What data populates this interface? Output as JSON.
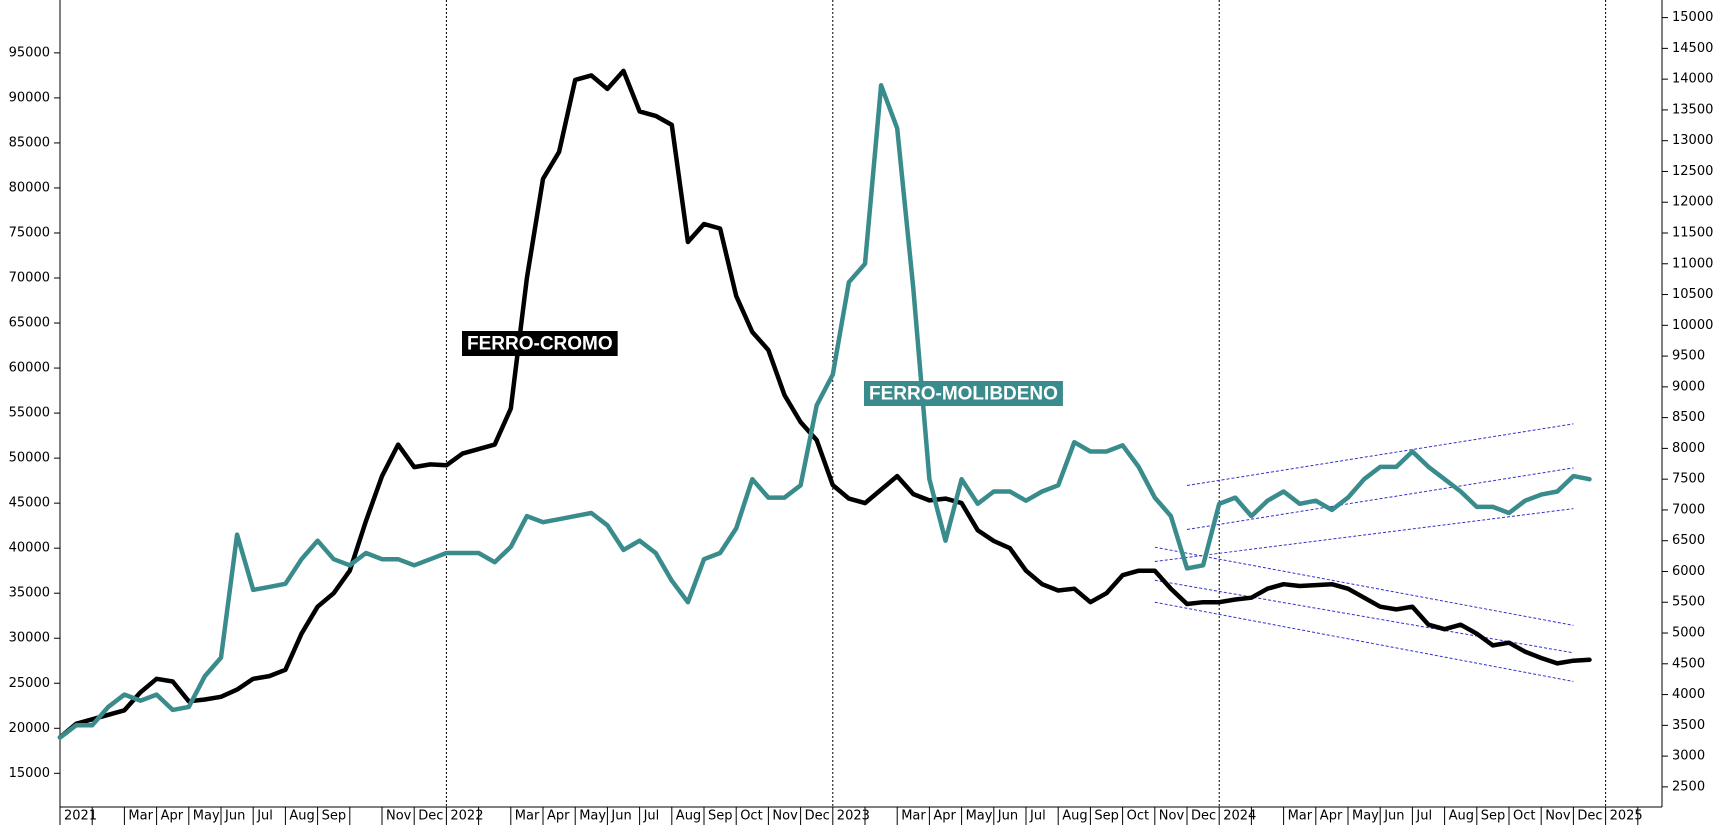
{
  "chart_data": {
    "type": "line",
    "categories": [
      "2021",
      null,
      null,
      null,
      "Mar",
      null,
      "Apr",
      null,
      "May",
      null,
      "Jun",
      null,
      "Jul",
      null,
      "Aug",
      null,
      "Sep",
      null,
      null,
      null,
      "Nov",
      null,
      "Dec",
      null,
      "2022",
      null,
      null,
      null,
      "Mar",
      null,
      "Apr",
      null,
      "May",
      null,
      "Jun",
      null,
      "Jul",
      null,
      "Aug",
      null,
      "Sep",
      null,
      "Oct",
      null,
      "Nov",
      null,
      "Dec",
      null,
      "2023",
      null,
      null,
      null,
      "Mar",
      null,
      "Apr",
      null,
      "May",
      null,
      "Jun",
      null,
      "Jul",
      null,
      "Aug",
      null,
      "Sep",
      null,
      "Oct",
      null,
      "Nov",
      null,
      "Dec",
      null,
      "2024",
      null,
      null,
      null,
      "Mar",
      null,
      "Apr",
      null,
      "May",
      null,
      "Jun",
      null,
      "Jul",
      null,
      "Aug",
      null,
      "Sep",
      null,
      "Oct",
      null,
      "Nov",
      null,
      "Dec",
      null,
      "2025",
      null,
      null,
      null
    ],
    "series": [
      {
        "name": "FERRO-CROMO",
        "color": "#000000",
        "values": [
          19000,
          20500,
          21000,
          21500,
          22000,
          24000,
          25500,
          25200,
          23000,
          23200,
          23500,
          24300,
          25500,
          25800,
          26500,
          30500,
          33500,
          35000,
          37500,
          43000,
          48000,
          51500,
          49000,
          49300,
          49200,
          50500,
          51000,
          51500,
          55500,
          70000,
          81000,
          84000,
          92000,
          92500,
          91000,
          93000,
          88500,
          88000,
          87000,
          74000,
          76000,
          75500,
          68000,
          64000,
          62000,
          57000,
          54000,
          52000,
          47000,
          45500,
          45000,
          46500,
          48000,
          46000,
          45300,
          45500,
          45000,
          42000,
          40800,
          40000,
          37500,
          36000,
          35300,
          35500,
          34000,
          35000,
          37000,
          37500,
          37500,
          35500,
          33800,
          34000,
          34000,
          34300,
          34500,
          35500,
          36000,
          35800,
          35900,
          36000,
          35500,
          34500,
          33500,
          33200,
          33500,
          31500,
          31000,
          31500,
          30500,
          29200,
          29500,
          28500,
          27800,
          27200,
          27500,
          27600,
          null,
          null,
          null,
          null
        ]
      },
      {
        "name": "FERRO-MOLIBDENO",
        "color": "#3a8c8c",
        "axis": "y2",
        "values": [
          3300,
          3500,
          3500,
          3800,
          4000,
          3900,
          4000,
          3750,
          3800,
          4300,
          4600,
          6600,
          5700,
          5750,
          5800,
          6200,
          6500,
          6200,
          6100,
          6300,
          6200,
          6200,
          6100,
          6200,
          6300,
          6300,
          6300,
          6150,
          6400,
          6900,
          6800,
          6850,
          6900,
          6950,
          6750,
          6350,
          6500,
          6300,
          5850,
          5500,
          6200,
          6300,
          6700,
          7500,
          7200,
          7200,
          7400,
          8700,
          9200,
          10700,
          11000,
          13900,
          13200,
          10600,
          7500,
          6500,
          7500,
          7100,
          7300,
          7300,
          7150,
          7300,
          7400,
          8100,
          7950,
          7950,
          8050,
          7700,
          7200,
          6900,
          6050,
          6100,
          7100,
          7200,
          6900,
          7150,
          7300,
          7100,
          7150,
          7000,
          7200,
          7500,
          7700,
          7700,
          7950,
          7700,
          7500,
          7300,
          7050,
          7050,
          6950,
          7150,
          7250,
          7300,
          7550,
          7500,
          null,
          null,
          null,
          null
        ]
      }
    ],
    "ylim": [
      11260,
      100870
    ],
    "yticks": [
      15000,
      20000,
      25000,
      30000,
      35000,
      40000,
      45000,
      50000,
      55000,
      60000,
      65000,
      70000,
      75000,
      80000,
      85000,
      90000,
      95000
    ],
    "y2lim": [
      2173,
      15286
    ],
    "y2ticks": [
      2500,
      3000,
      3500,
      4000,
      4500,
      5000,
      5500,
      6000,
      6500,
      7000,
      7500,
      8000,
      8500,
      9000,
      9500,
      10000,
      10500,
      11000,
      11500,
      12000,
      12500,
      13000,
      13500,
      14000,
      14500,
      15000
    ],
    "trend_lines": [
      {
        "axis": "y2",
        "color": "#3333cc",
        "values": [
          null,
          null,
          null,
          null,
          null,
          null,
          null,
          null,
          null,
          null,
          null,
          null,
          null,
          null,
          null,
          null,
          null,
          null,
          null,
          null,
          null,
          null,
          null,
          null,
          null,
          null,
          null,
          null,
          null,
          null,
          null,
          null,
          null,
          null,
          null,
          null,
          null,
          null,
          null,
          null,
          null,
          null,
          null,
          null,
          null,
          null,
          null,
          null,
          null,
          null,
          null,
          null,
          null,
          null,
          null,
          null,
          null,
          null,
          null,
          null,
          null,
          null,
          null,
          null,
          null,
          null,
          null,
          null,
          null,
          null,
          7397,
          null,
          null,
          null,
          null,
          null,
          null,
          null,
          null,
          null,
          null,
          null,
          null,
          null,
          null,
          null,
          null,
          null,
          null,
          null,
          null,
          null,
          null,
          null,
          8399,
          null,
          null,
          null,
          null,
          null
        ]
      },
      {
        "axis": "y2",
        "color": "#3333cc",
        "values": [
          null,
          null,
          null,
          null,
          null,
          null,
          null,
          null,
          null,
          null,
          null,
          null,
          null,
          null,
          null,
          null,
          null,
          null,
          null,
          null,
          null,
          null,
          null,
          null,
          null,
          null,
          null,
          null,
          null,
          null,
          null,
          null,
          null,
          null,
          null,
          null,
          null,
          null,
          null,
          null,
          null,
          null,
          null,
          null,
          null,
          null,
          null,
          null,
          null,
          null,
          null,
          null,
          null,
          null,
          null,
          null,
          null,
          null,
          null,
          null,
          null,
          null,
          null,
          null,
          null,
          null,
          null,
          null,
          null,
          null,
          6682,
          null,
          null,
          null,
          null,
          null,
          null,
          null,
          null,
          null,
          null,
          null,
          null,
          null,
          null,
          null,
          null,
          null,
          null,
          null,
          null,
          null,
          null,
          null,
          7683,
          null,
          null,
          null,
          null,
          null
        ]
      },
      {
        "axis": "y2",
        "color": "#3333cc",
        "values": [
          null,
          null,
          null,
          null,
          null,
          null,
          null,
          null,
          null,
          null,
          null,
          null,
          null,
          null,
          null,
          null,
          null,
          null,
          null,
          null,
          null,
          null,
          null,
          null,
          null,
          null,
          null,
          null,
          null,
          null,
          null,
          null,
          null,
          null,
          null,
          null,
          null,
          null,
          null,
          null,
          null,
          null,
          null,
          null,
          null,
          null,
          null,
          null,
          null,
          null,
          null,
          null,
          null,
          null,
          null,
          null,
          null,
          null,
          null,
          null,
          null,
          null,
          null,
          null,
          null,
          null,
          null,
          null,
          6163,
          null,
          null,
          null,
          null,
          null,
          null,
          null,
          null,
          null,
          null,
          null,
          null,
          null,
          null,
          null,
          null,
          null,
          null,
          null,
          null,
          null,
          null,
          null,
          null,
          null,
          7021,
          null,
          null,
          null,
          null,
          null
        ]
      },
      {
        "axis": "y",
        "color": "#3333cc",
        "values": [
          null,
          null,
          null,
          null,
          null,
          null,
          null,
          null,
          null,
          null,
          null,
          null,
          null,
          null,
          null,
          null,
          null,
          null,
          null,
          null,
          null,
          null,
          null,
          null,
          null,
          null,
          null,
          null,
          null,
          null,
          null,
          null,
          null,
          null,
          null,
          null,
          null,
          null,
          null,
          null,
          null,
          null,
          null,
          null,
          null,
          null,
          null,
          null,
          null,
          null,
          null,
          null,
          null,
          null,
          null,
          null,
          null,
          null,
          null,
          null,
          null,
          null,
          null,
          null,
          null,
          null,
          null,
          null,
          40110,
          null,
          null,
          null,
          null,
          null,
          null,
          null,
          null,
          null,
          null,
          null,
          null,
          null,
          null,
          null,
          null,
          null,
          null,
          null,
          null,
          null,
          null,
          null,
          null,
          null,
          31430,
          null,
          null,
          null,
          null,
          null
        ]
      },
      {
        "axis": "y",
        "color": "#3333cc",
        "values": [
          null,
          null,
          null,
          null,
          null,
          null,
          null,
          null,
          null,
          null,
          null,
          null,
          null,
          null,
          null,
          null,
          null,
          null,
          null,
          null,
          null,
          null,
          null,
          null,
          null,
          null,
          null,
          null,
          null,
          null,
          null,
          null,
          null,
          null,
          null,
          null,
          null,
          null,
          null,
          null,
          null,
          null,
          null,
          null,
          null,
          null,
          null,
          null,
          null,
          null,
          null,
          null,
          null,
          null,
          null,
          null,
          null,
          null,
          null,
          null,
          null,
          null,
          null,
          null,
          null,
          null,
          null,
          null,
          36440,
          null,
          null,
          null,
          null,
          null,
          null,
          null,
          null,
          null,
          null,
          null,
          null,
          null,
          null,
          null,
          null,
          null,
          null,
          null,
          null,
          null,
          null,
          null,
          null,
          null,
          28380,
          null,
          null,
          null,
          null,
          null
        ]
      },
      {
        "axis": "y",
        "color": "#3333cc",
        "values": [
          null,
          null,
          null,
          null,
          null,
          null,
          null,
          null,
          null,
          null,
          null,
          null,
          null,
          null,
          null,
          null,
          null,
          null,
          null,
          null,
          null,
          null,
          null,
          null,
          null,
          null,
          null,
          null,
          null,
          null,
          null,
          null,
          null,
          null,
          null,
          null,
          null,
          null,
          null,
          null,
          null,
          null,
          null,
          null,
          null,
          null,
          null,
          null,
          null,
          null,
          null,
          null,
          null,
          null,
          null,
          null,
          null,
          null,
          null,
          null,
          null,
          null,
          null,
          null,
          null,
          null,
          null,
          null,
          34000,
          null,
          null,
          null,
          null,
          null,
          null,
          null,
          null,
          null,
          null,
          null,
          null,
          null,
          null,
          null,
          null,
          null,
          null,
          null,
          null,
          null,
          null,
          null,
          null,
          null,
          25200,
          null,
          null,
          null,
          null,
          null
        ]
      }
    ]
  }
}
